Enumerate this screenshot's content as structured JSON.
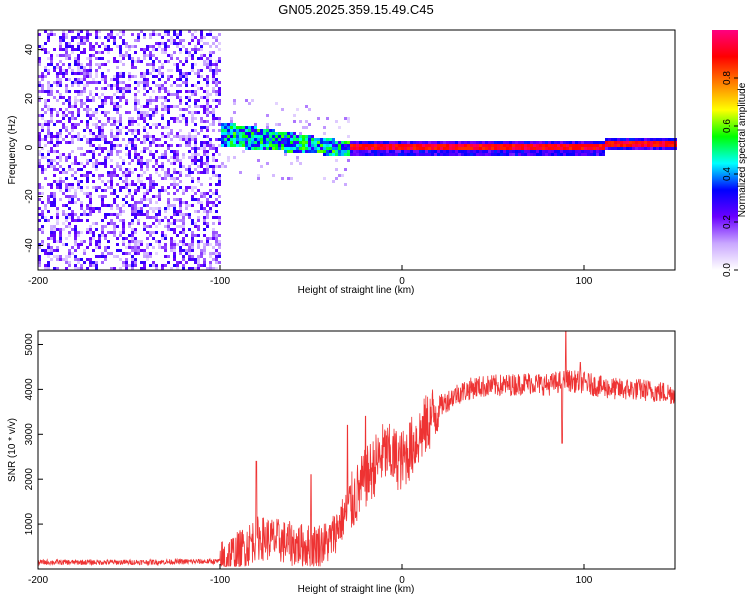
{
  "title": "GN05.2025.359.15.49.C45",
  "chart_data": [
    {
      "type": "heatmap",
      "xlabel": "Height of straight line (km)",
      "ylabel": "Frequency (Hz)",
      "xlim": [
        -200,
        150
      ],
      "ylim": [
        -50,
        48
      ],
      "xticks": [
        -200,
        -100,
        0,
        100
      ],
      "yticks": [
        -40,
        -20,
        0,
        20,
        40
      ],
      "colorbar": {
        "label": "Normalized spectral amplitude",
        "range": [
          0,
          1
        ],
        "ticks": [
          0.0,
          0.2,
          0.4,
          0.6,
          0.8
        ],
        "colors": [
          "#ffffff",
          "#c9a7ff",
          "#6a00ff",
          "#0000ff",
          "#00ffff",
          "#00ff00",
          "#ffff00",
          "#ff8000",
          "#ff0000",
          "#ff0080"
        ]
      },
      "regions": [
        {
          "x": [
            -200,
            -100
          ],
          "freq": [
            -50,
            48
          ],
          "amplitude": 0.15,
          "description_level": "noise"
        },
        {
          "x": [
            -100,
            -30
          ],
          "freq_center": [
            6,
            0
          ],
          "freq_halfwidth": 5,
          "amplitude": 0.35
        },
        {
          "x": [
            -30,
            150
          ],
          "freq_center": [
            0,
            2
          ],
          "freq_halfwidth": 1.5,
          "amplitude": 0.9
        }
      ]
    },
    {
      "type": "line",
      "xlabel": "Height of straight line (km)",
      "ylabel": "SNR (10 * v/v)",
      "xlim": [
        -200,
        150
      ],
      "ylim": [
        0,
        5300
      ],
      "xticks": [
        -200,
        -100,
        0,
        100
      ],
      "yticks": [
        1000,
        2000,
        3000,
        4000,
        5000
      ],
      "color": "#ee3333",
      "series": [
        {
          "x": [
            -200,
            -150,
            -100,
            -90,
            -80,
            -70,
            -60,
            -50,
            -40,
            -30,
            -20,
            -10,
            0,
            10,
            20,
            30,
            40,
            50,
            60,
            70,
            80,
            90,
            100,
            110,
            120,
            130,
            140,
            150
          ],
          "values": [
            150,
            150,
            170,
            350,
            700,
            650,
            550,
            500,
            600,
            1300,
            2000,
            2600,
            2400,
            3000,
            3600,
            3900,
            4050,
            4080,
            4100,
            4150,
            4100,
            4200,
            4150,
            4050,
            4000,
            4000,
            3950,
            3900
          ]
        }
      ],
      "spikes": [
        [
          -80,
          2400
        ],
        [
          -20,
          3400
        ],
        [
          -30,
          3200
        ],
        [
          -50,
          2100
        ],
        [
          90,
          5300
        ],
        [
          98,
          4600
        ],
        [
          88,
          2800
        ]
      ]
    }
  ]
}
